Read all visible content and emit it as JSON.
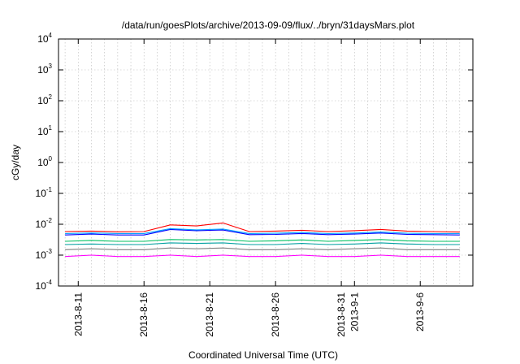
{
  "chart_data": {
    "type": "line",
    "title": "/data/run/goesPlots/archive/2013-09-09/flux/../bryn/31daysMars.plot",
    "xlabel": "Coordinated Universal Time (UTC)",
    "ylabel": "cGy/day",
    "y_scale": "log",
    "ylim": [
      0.0001,
      10000
    ],
    "y_ticks": [
      {
        "value": 0.0001,
        "base": "10",
        "exp": "-4"
      },
      {
        "value": 0.001,
        "base": "10",
        "exp": "-3"
      },
      {
        "value": 0.01,
        "base": "10",
        "exp": "-2"
      },
      {
        "value": 0.1,
        "base": "10",
        "exp": "-1"
      },
      {
        "value": 1,
        "base": "10",
        "exp": "0"
      },
      {
        "value": 10,
        "base": "10",
        "exp": "1"
      },
      {
        "value": 100,
        "base": "10",
        "exp": "2"
      },
      {
        "value": 1000,
        "base": "10",
        "exp": "3"
      },
      {
        "value": 10000,
        "base": "10",
        "exp": "4"
      }
    ],
    "xlim": [
      "2013-08-09T12:00",
      "2013-09-10T00:00"
    ],
    "x_ticks": [
      {
        "value": "2013-08-11",
        "label": "2013-8-11"
      },
      {
        "value": "2013-08-16",
        "label": "2013-8-16"
      },
      {
        "value": "2013-08-21",
        "label": "2013-8-21"
      },
      {
        "value": "2013-08-26",
        "label": "2013-8-26"
      },
      {
        "value": "2013-08-31",
        "label": "2013-8-31"
      },
      {
        "value": "2013-09-01",
        "label": "2013-9-1"
      },
      {
        "value": "2013-09-06",
        "label": "2013-9-6"
      }
    ],
    "grid": true,
    "legend": "none",
    "series": [
      {
        "color": "#ff00ff",
        "x": [
          "2013-08-10",
          "2013-08-12",
          "2013-08-14",
          "2013-08-16",
          "2013-08-18",
          "2013-08-20",
          "2013-08-22",
          "2013-08-24",
          "2013-08-26",
          "2013-08-28",
          "2013-08-30",
          "2013-09-01",
          "2013-09-03",
          "2013-09-05",
          "2013-09-07",
          "2013-09-09"
        ],
        "values": [
          0.0009,
          0.001,
          0.0009,
          0.0009,
          0.001,
          0.0009,
          0.001,
          0.0009,
          0.0009,
          0.001,
          0.0009,
          0.0009,
          0.001,
          0.0009,
          0.0009,
          0.0009
        ]
      },
      {
        "color": "#808080",
        "x": [
          "2013-08-10",
          "2013-08-12",
          "2013-08-14",
          "2013-08-16",
          "2013-08-18",
          "2013-08-20",
          "2013-08-22",
          "2013-08-24",
          "2013-08-26",
          "2013-08-28",
          "2013-08-30",
          "2013-09-01",
          "2013-09-03",
          "2013-09-05",
          "2013-09-07",
          "2013-09-09"
        ],
        "values": [
          0.0015,
          0.0016,
          0.0015,
          0.0015,
          0.0017,
          0.0016,
          0.0017,
          0.0015,
          0.0015,
          0.0016,
          0.0015,
          0.0016,
          0.0017,
          0.0015,
          0.0015,
          0.0015
        ]
      },
      {
        "color": "#00a0a0",
        "x": [
          "2013-08-10",
          "2013-08-12",
          "2013-08-14",
          "2013-08-16",
          "2013-08-18",
          "2013-08-20",
          "2013-08-22",
          "2013-08-24",
          "2013-08-26",
          "2013-08-28",
          "2013-08-30",
          "2013-09-01",
          "2013-09-03",
          "2013-09-05",
          "2013-09-07",
          "2013-09-09"
        ],
        "values": [
          0.0022,
          0.0023,
          0.0022,
          0.0022,
          0.0025,
          0.0024,
          0.0025,
          0.0022,
          0.0022,
          0.0024,
          0.0022,
          0.0023,
          0.0025,
          0.0023,
          0.0022,
          0.0022
        ]
      },
      {
        "color": "#00c060",
        "x": [
          "2013-08-10",
          "2013-08-12",
          "2013-08-14",
          "2013-08-16",
          "2013-08-18",
          "2013-08-20",
          "2013-08-22",
          "2013-08-24",
          "2013-08-26",
          "2013-08-28",
          "2013-08-30",
          "2013-09-01",
          "2013-09-03",
          "2013-09-05",
          "2013-09-07",
          "2013-09-09"
        ],
        "values": [
          0.0028,
          0.003,
          0.0028,
          0.0028,
          0.0032,
          0.0031,
          0.0032,
          0.0028,
          0.0029,
          0.0031,
          0.0028,
          0.003,
          0.0032,
          0.0029,
          0.0028,
          0.0028
        ]
      },
      {
        "color": "#0000ff",
        "x": [
          "2013-08-10",
          "2013-08-12",
          "2013-08-14",
          "2013-08-16",
          "2013-08-18",
          "2013-08-20",
          "2013-08-22",
          "2013-08-24",
          "2013-08-26",
          "2013-08-28",
          "2013-08-30",
          "2013-09-01",
          "2013-09-03",
          "2013-09-05",
          "2013-09-07",
          "2013-09-09"
        ],
        "values": [
          0.0045,
          0.0048,
          0.0045,
          0.0045,
          0.0068,
          0.0062,
          0.0065,
          0.0046,
          0.0047,
          0.005,
          0.0046,
          0.0048,
          0.0052,
          0.0047,
          0.0046,
          0.0045
        ]
      },
      {
        "color": "#00a0ff",
        "x": [
          "2013-08-10",
          "2013-08-12",
          "2013-08-14",
          "2013-08-16",
          "2013-08-18",
          "2013-08-20",
          "2013-08-22",
          "2013-08-24",
          "2013-08-26",
          "2013-08-28",
          "2013-08-30",
          "2013-09-01",
          "2013-09-03",
          "2013-09-05",
          "2013-09-07",
          "2013-09-09"
        ],
        "values": [
          0.005,
          0.0052,
          0.005,
          0.005,
          0.0072,
          0.0066,
          0.007,
          0.005,
          0.0051,
          0.0054,
          0.005,
          0.0052,
          0.0056,
          0.0051,
          0.005,
          0.005
        ]
      },
      {
        "color": "#ff0000",
        "x": [
          "2013-08-10",
          "2013-08-12",
          "2013-08-14",
          "2013-08-16",
          "2013-08-18",
          "2013-08-20",
          "2013-08-22",
          "2013-08-24",
          "2013-08-26",
          "2013-08-28",
          "2013-08-30",
          "2013-09-01",
          "2013-09-03",
          "2013-09-05",
          "2013-09-07",
          "2013-09-09"
        ],
        "values": [
          0.0058,
          0.006,
          0.0057,
          0.0058,
          0.0095,
          0.0088,
          0.011,
          0.0058,
          0.006,
          0.0064,
          0.0058,
          0.0062,
          0.0068,
          0.006,
          0.0058,
          0.0056
        ]
      }
    ]
  }
}
